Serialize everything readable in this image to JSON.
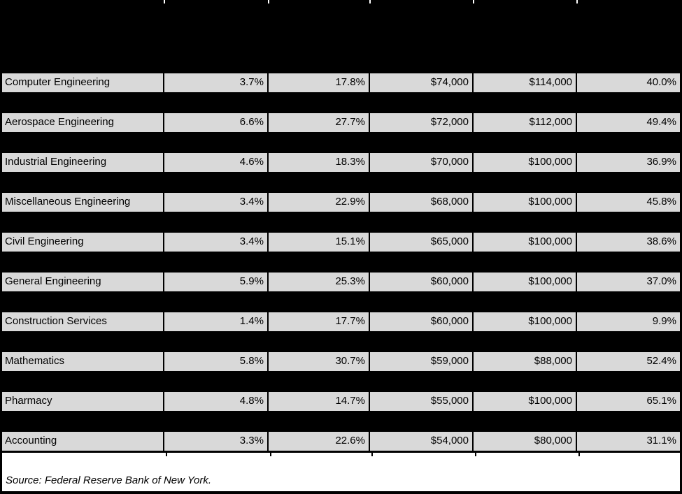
{
  "chart_data": {
    "type": "table",
    "title": "",
    "header_visible_text": "",
    "rows": [
      [
        "Computer Engineering",
        "3.7%",
        "17.8%",
        "$74,000",
        "$114,000",
        "40.0%"
      ],
      [
        "Aerospace Engineering",
        "6.6%",
        "27.7%",
        "$72,000",
        "$112,000",
        "49.4%"
      ],
      [
        "Industrial Engineering",
        "4.6%",
        "18.3%",
        "$70,000",
        "$100,000",
        "36.9%"
      ],
      [
        "Miscellaneous Engineering",
        "3.4%",
        "22.9%",
        "$68,000",
        "$100,000",
        "45.8%"
      ],
      [
        "Civil Engineering",
        "3.4%",
        "15.1%",
        "$65,000",
        "$100,000",
        "38.6%"
      ],
      [
        "General Engineering",
        "5.9%",
        "25.3%",
        "$60,000",
        "$100,000",
        "37.0%"
      ],
      [
        "Construction Services",
        "1.4%",
        "17.7%",
        "$60,000",
        "$100,000",
        "9.9%"
      ],
      [
        "Mathematics",
        "5.8%",
        "30.7%",
        "$59,000",
        "$88,000",
        "52.4%"
      ],
      [
        "Pharmacy",
        "4.8%",
        "14.7%",
        "$55,000",
        "$100,000",
        "65.1%"
      ],
      [
        "Accounting",
        "3.3%",
        "22.6%",
        "$54,000",
        "$80,000",
        "31.1%"
      ]
    ],
    "source_note": "Source: Federal Reserve Bank of New York."
  },
  "colors": {
    "background": "#000000",
    "header_fill": "#000000",
    "row_fill": "#d9d9d9",
    "footer_fill": "#ffffff",
    "text": "#000000"
  }
}
